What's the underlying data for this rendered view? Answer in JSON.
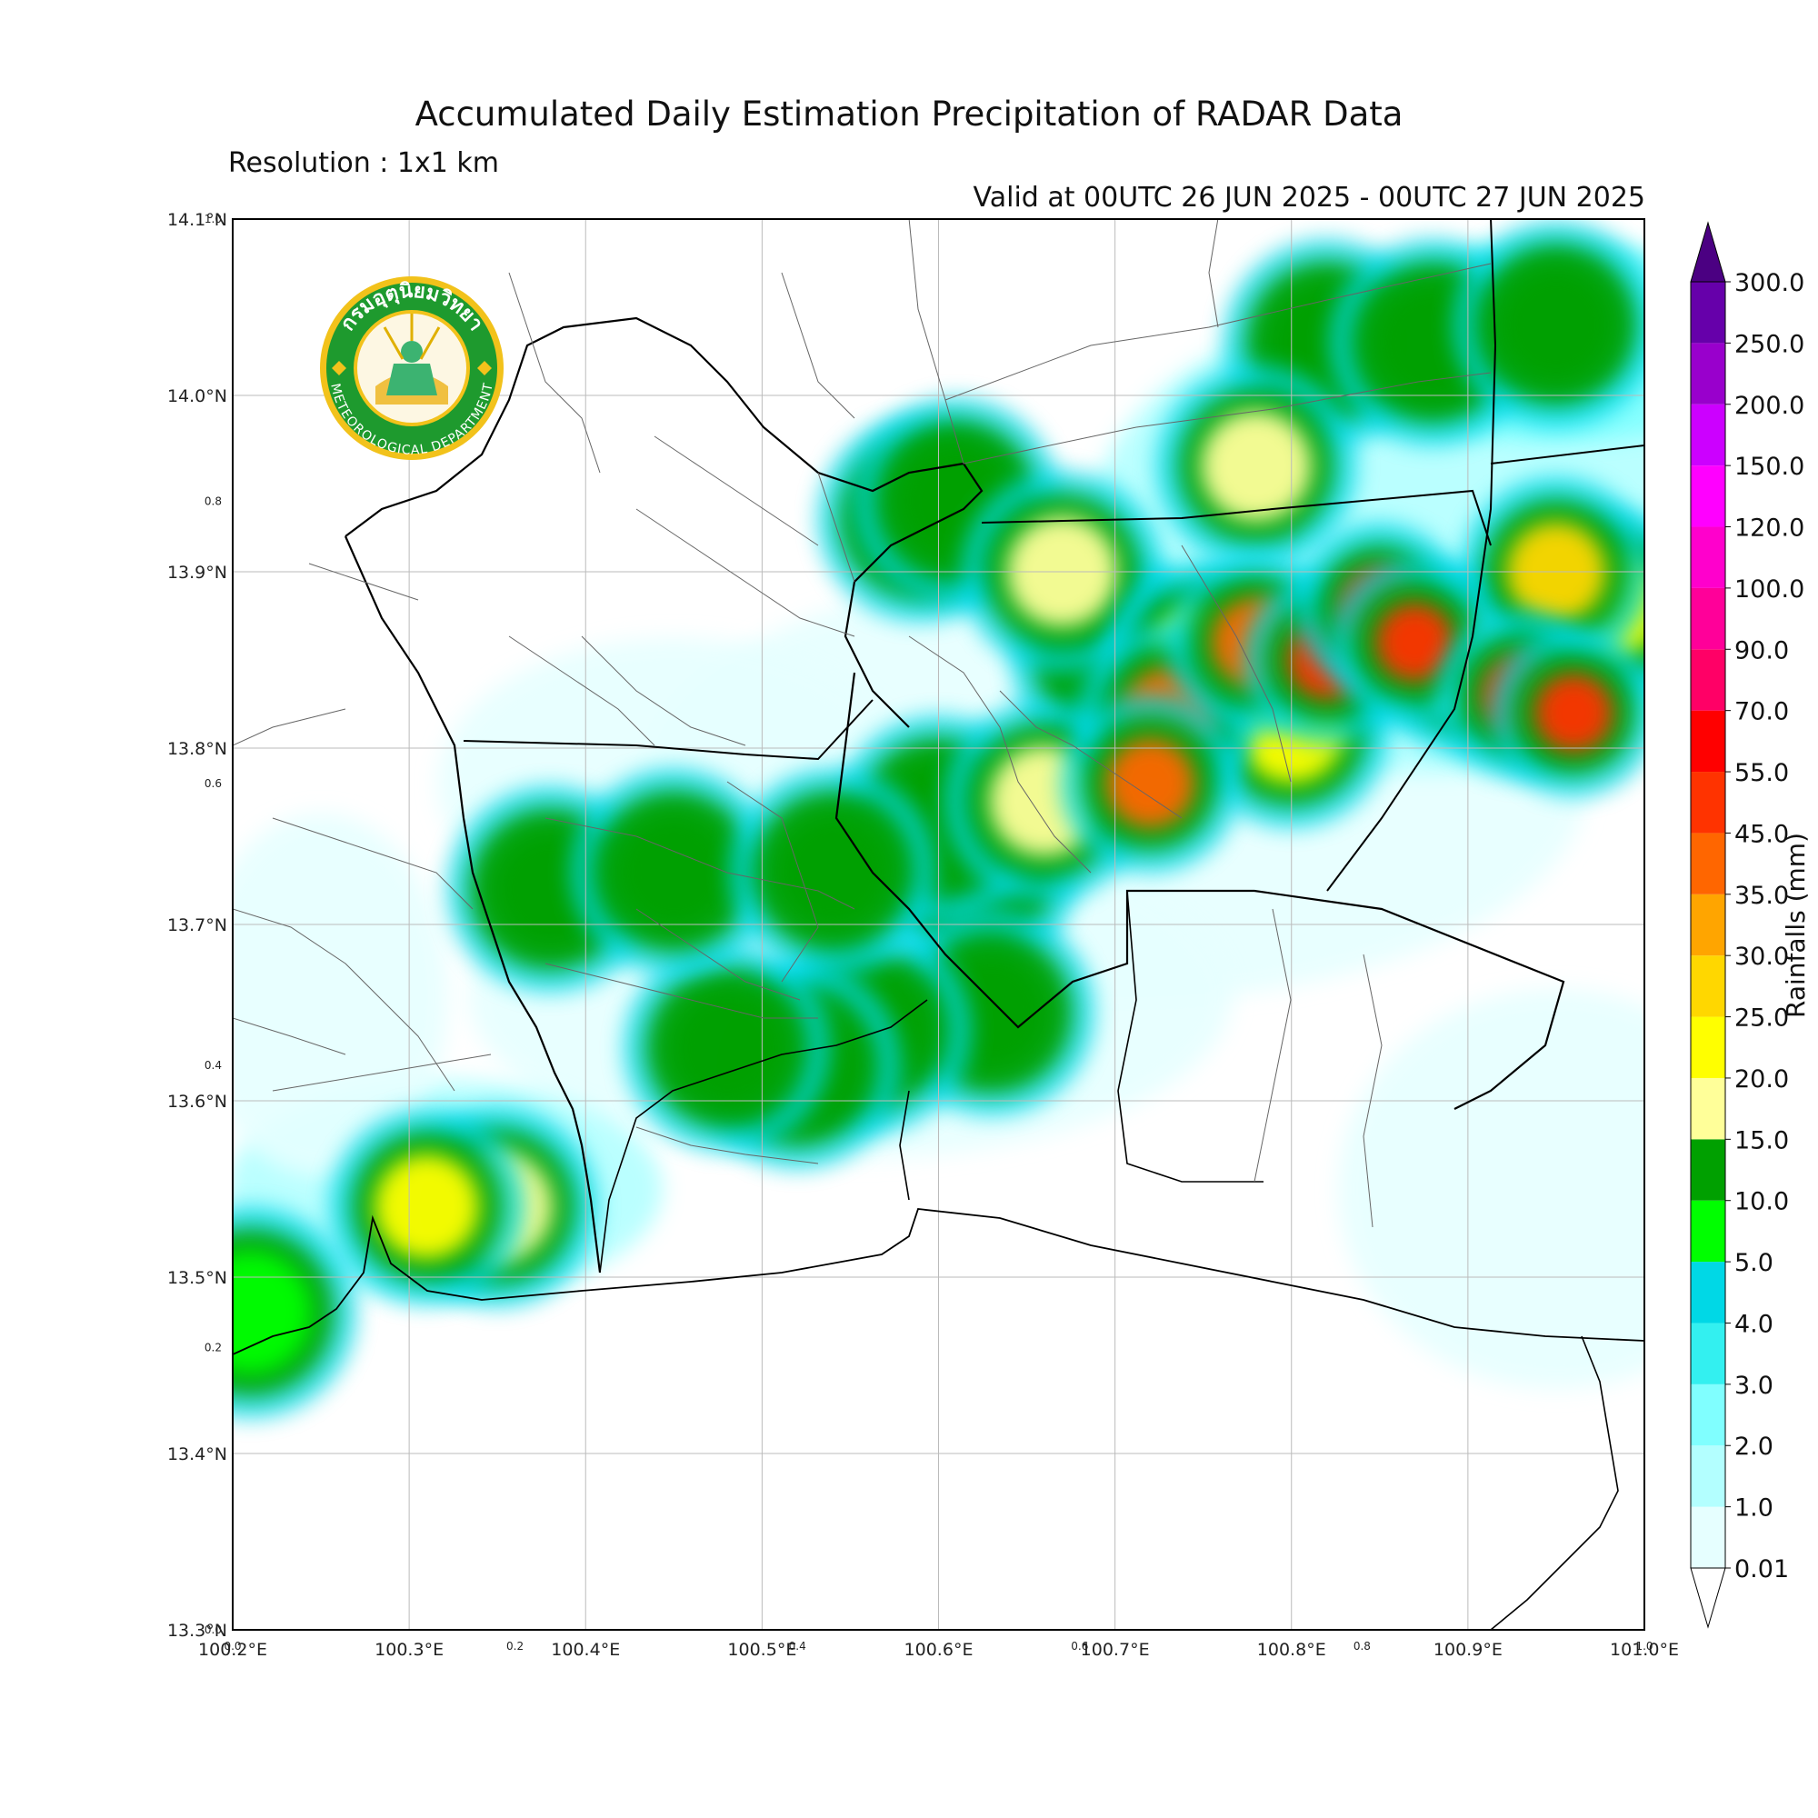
{
  "title": "Accumulated Daily Estimation Precipitation of RADAR Data",
  "subtitle": "Resolution : 1x1 km",
  "valid_period": "Valid at 00UTC 26 JUN 2025 - 00UTC 27 JUN 2025",
  "logo": {
    "arc_top_text": "กรมอุตุนิยมวิทยา",
    "arc_bottom_text": "METEOROLOGICAL DEPARTMENT"
  },
  "axes": {
    "lon_ticks": [
      "100.2°E",
      "100.3°E",
      "100.4°E",
      "100.5°E",
      "100.6°E",
      "100.7°E",
      "100.8°E",
      "100.9°E",
      "101.0°E"
    ],
    "lat_ticks": [
      "13.3°N",
      "13.4°N",
      "13.5°N",
      "13.6°N",
      "13.7°N",
      "13.8°N",
      "13.9°N",
      "14.0°N",
      "14.1°N"
    ],
    "lon_range": [
      100.2,
      101.0
    ],
    "lat_range": [
      13.3,
      14.1
    ],
    "frac_ticks_x": [
      "0.0",
      "0.2",
      "0.4",
      "0.6",
      "0.8",
      "1.0"
    ],
    "frac_ticks_y": [
      "0.0",
      "0.2",
      "0.4",
      "0.6",
      "0.8",
      "1.0"
    ]
  },
  "colorbar": {
    "label": "Rainfalls (mm)",
    "levels": [
      "0.01",
      "1.0",
      "2.0",
      "3.0",
      "4.0",
      "5.0",
      "10.0",
      "15.0",
      "20.0",
      "25.0",
      "30.0",
      "35.0",
      "45.0",
      "55.0",
      "70.0",
      "90.0",
      "100.0",
      "120.0",
      "150.0",
      "200.0",
      "250.0",
      "300.0"
    ],
    "colors": [
      "#e6ffff",
      "#b3ffff",
      "#80ffff",
      "#33f0f0",
      "#00d8e6",
      "#00ff00",
      "#00a000",
      "#ffff99",
      "#ffff00",
      "#ffd700",
      "#ffa500",
      "#ff6600",
      "#ff3300",
      "#ff0000",
      "#ff0066",
      "#ff0099",
      "#ff00cc",
      "#ff00ff",
      "#cc00ff",
      "#9900cc",
      "#6600aa"
    ],
    "over_color": "#4b0082",
    "under_color": "#ffffff"
  },
  "precip_cells": [
    {
      "lon": 100.7,
      "lat": 13.85,
      "val": 10.0
    },
    {
      "lon": 100.73,
      "lat": 13.82,
      "val": 35.0
    },
    {
      "lon": 100.75,
      "lat": 13.85,
      "val": 20.0
    },
    {
      "lon": 100.78,
      "lat": 13.86,
      "val": 35.0
    },
    {
      "lon": 100.82,
      "lat": 13.85,
      "val": 45.0
    },
    {
      "lon": 100.85,
      "lat": 13.88,
      "val": 45.0
    },
    {
      "lon": 100.87,
      "lat": 13.86,
      "val": 45.0
    },
    {
      "lon": 100.9,
      "lat": 13.85,
      "val": 25.0
    },
    {
      "lon": 100.93,
      "lat": 13.83,
      "val": 45.0
    },
    {
      "lon": 100.96,
      "lat": 13.82,
      "val": 45.0
    },
    {
      "lon": 100.98,
      "lat": 13.88,
      "val": 20.0
    },
    {
      "lon": 100.95,
      "lat": 13.9,
      "val": 25.0
    },
    {
      "lon": 100.8,
      "lat": 13.81,
      "val": 20.0
    },
    {
      "lon": 100.72,
      "lat": 13.78,
      "val": 35.0
    },
    {
      "lon": 100.66,
      "lat": 13.77,
      "val": 15.0
    },
    {
      "lon": 100.62,
      "lat": 13.73,
      "val": 10.0
    },
    {
      "lon": 100.6,
      "lat": 13.76,
      "val": 10.0
    },
    {
      "lon": 100.67,
      "lat": 13.9,
      "val": 15.0
    },
    {
      "lon": 100.78,
      "lat": 13.96,
      "val": 15.0
    },
    {
      "lon": 100.82,
      "lat": 14.03,
      "val": 10.0
    },
    {
      "lon": 100.88,
      "lat": 14.03,
      "val": 10.0
    },
    {
      "lon": 100.95,
      "lat": 14.04,
      "val": 10.0
    },
    {
      "lon": 100.63,
      "lat": 13.65,
      "val": 10.0
    },
    {
      "lon": 100.56,
      "lat": 13.64,
      "val": 10.0
    },
    {
      "lon": 100.52,
      "lat": 13.62,
      "val": 10.0
    },
    {
      "lon": 100.48,
      "lat": 13.63,
      "val": 10.0
    },
    {
      "lon": 100.35,
      "lat": 13.54,
      "val": 15.0
    },
    {
      "lon": 100.31,
      "lat": 13.54,
      "val": 20.0
    },
    {
      "lon": 100.38,
      "lat": 13.72,
      "val": 10.0
    },
    {
      "lon": 100.45,
      "lat": 13.73,
      "val": 10.0
    },
    {
      "lon": 100.54,
      "lat": 13.73,
      "val": 10.0
    },
    {
      "lon": 100.59,
      "lat": 13.93,
      "val": 10.0
    },
    {
      "lon": 100.61,
      "lat": 13.94,
      "val": 10.0
    },
    {
      "lon": 100.21,
      "lat": 13.48,
      "val": 5.0
    }
  ]
}
